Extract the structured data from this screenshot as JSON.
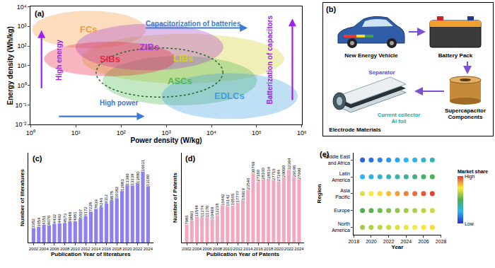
{
  "chart_data": [
    {
      "type": "region",
      "title": "(a)",
      "x_label": "Power density (W/kg)",
      "y_label": "Energy density (Wh/kg)",
      "log": true,
      "grid": false,
      "xlim": [
        1,
        1000000
      ],
      "xticks": [
        {
          "value": 1,
          "label": "10⁰"
        },
        {
          "value": 10,
          "label": "10¹"
        },
        {
          "value": 100,
          "label": "10²"
        },
        {
          "value": 1000,
          "label": "10³"
        },
        {
          "value": 10000,
          "label": "10⁴"
        },
        {
          "value": 100000,
          "label": "10⁵"
        },
        {
          "value": 1000000,
          "label": "10⁶"
        }
      ],
      "ylim": [
        0.01,
        10000
      ],
      "yticks": [
        {
          "value": 0.01,
          "label": "10⁻²"
        },
        {
          "value": 0.1,
          "label": "10⁻¹"
        },
        {
          "value": 1,
          "label": "10⁰"
        },
        {
          "value": 10,
          "label": "10¹"
        },
        {
          "value": 100,
          "label": "10²"
        },
        {
          "value": 1000,
          "label": "10³"
        },
        {
          "value": 10000,
          "label": "10⁴"
        }
      ],
      "regions": [
        {
          "name": "LIBs",
          "color": "#d6cf2a",
          "x_range": [
            14,
            400000
          ],
          "y_range": [
            1.3,
            400
          ]
        },
        {
          "name": "ASCs",
          "color": "#4fb84f",
          "x_range": [
            40,
            100000
          ],
          "y_range": [
            0.1,
            30
          ]
        },
        {
          "name": "EDLCs",
          "color": "#3f9fe0",
          "x_range": [
            800,
            800000
          ],
          "y_range": [
            0.02,
            4
          ]
        },
        {
          "name": "FCs",
          "color": "#f59a3a",
          "x_range": [
            1.1,
            350
          ],
          "y_range": [
            80,
            6000
          ]
        },
        {
          "name": "ZIBs",
          "color": "#a83cd0",
          "x_range": [
            10,
            18000
          ],
          "y_range": [
            6,
            1300
          ]
        },
        {
          "name": "SIBs",
          "color": "#e8263f",
          "x_range": [
            2,
            1600
          ],
          "y_range": [
            3,
            160
          ]
        },
        {
          "color": "#1e6b2a",
          "line_style": "dot",
          "x_range": [
            28,
            18000
          ],
          "y_range": [
            0.25,
            80
          ]
        }
      ],
      "annotations": [
        {
          "text": "Capacitorization of batteries",
          "color": "#3a7bd5"
        },
        {
          "text": "Batterization of capacitors",
          "color": "#a020f0"
        },
        {
          "text": "High energy",
          "color": "#a020f0"
        },
        {
          "text": "High power",
          "color": "#3a7bd5"
        }
      ]
    },
    {
      "type": "bar",
      "title": "(c)",
      "x_label": "Publication Year of literatures",
      "y_label": "Number of literatures",
      "x": [
        2002,
        2003,
        2004,
        2005,
        2006,
        2007,
        2008,
        2009,
        2010,
        2011,
        2012,
        2013,
        2014,
        2015,
        2016,
        2017,
        2018,
        2019,
        2020,
        2021,
        2022,
        2023,
        2024
      ],
      "values": [
        3382,
        3654,
        4151,
        4070,
        4432,
        4492,
        4573,
        4948,
        4981,
        5597,
        6172,
        7228,
        7839,
        8246,
        9112,
        9875,
        10382,
        12081,
        13399,
        13339,
        13880,
        16631,
        13180
      ],
      "color": "#8f80ee",
      "xlim": [
        2001,
        2025
      ],
      "xticks": [
        2002,
        2004,
        2006,
        2008,
        2010,
        2012,
        2014,
        2016,
        2018,
        2020,
        2022,
        2024
      ],
      "ylim": [
        0,
        21000
      ],
      "data_labels": true,
      "tick_labels": "x",
      "grid": false
    },
    {
      "type": "bar",
      "title": "(d)",
      "x_label": "Publication Year of Patents",
      "y_label": "Number of Patents",
      "x": [
        2002,
        2003,
        2004,
        2005,
        2006,
        2007,
        2008,
        2009,
        2010,
        2011,
        2012,
        2013,
        2014,
        2015,
        2016,
        2017,
        2018,
        2019,
        2020,
        2021,
        2022,
        2023,
        2024
      ],
      "values": [
        7986,
        9891,
        11544,
        11374,
        11370,
        10499,
        12218,
        16442,
        16142,
        16565,
        17777,
        18919,
        23546,
        30769,
        27180,
        28100,
        28514,
        27716,
        27244,
        29090,
        32394,
        29196,
        27999
      ],
      "color": "#f2a9c0",
      "xlim": [
        2001,
        2025
      ],
      "xticks": [
        2002,
        2004,
        2006,
        2008,
        2010,
        2012,
        2014,
        2016,
        2018,
        2020,
        2022,
        2024
      ],
      "ylim": [
        0,
        40000
      ],
      "data_labels": true,
      "tick_labels": "x",
      "grid": false
    },
    {
      "type": "scatter",
      "title": "(e)",
      "x_label": "Year",
      "y_label": "Region",
      "categories": [
        "North\nAmerica",
        "Europe",
        "Asia\nPacific",
        "Latin\nAmerica",
        "Middle East\nand Africa"
      ],
      "x": [
        2019,
        2020,
        2021,
        2022,
        2023,
        2024,
        2025,
        2026,
        2027
      ],
      "cells": [
        [
          0.62,
          0.64,
          0.66,
          0.68,
          0.7,
          0.72,
          0.74,
          0.76,
          0.78
        ],
        [
          0.5,
          0.52,
          0.55,
          0.58,
          0.6,
          0.62,
          0.64,
          0.66,
          0.68
        ],
        [
          0.7,
          0.74,
          0.78,
          0.82,
          0.86,
          0.9,
          0.93,
          0.96,
          0.99
        ],
        [
          0.25,
          0.28,
          0.31,
          0.34,
          0.37,
          0.4,
          0.43,
          0.46,
          0.5
        ],
        [
          0.1,
          0.13,
          0.16,
          0.19,
          0.22,
          0.25,
          0.28,
          0.31,
          0.34
        ]
      ],
      "xlim": [
        2018,
        2028
      ],
      "xticks": [
        2018,
        2020,
        2022,
        2024,
        2026,
        2028
      ],
      "color_range": [
        0,
        1
      ],
      "color_ticks": [
        {
          "value": 0,
          "label": "Low"
        },
        {
          "value": 1,
          "label": "High"
        }
      ],
      "colorbar_title": "Market share",
      "marker": "circle",
      "grid": false
    }
  ],
  "diagram": {
    "title": "(b)",
    "vehicle": "New Energy Vehicle",
    "battery": "Battery Pack",
    "supercapacitor": "Supercapacitor\nComponents",
    "electrode": "Electrode Materials",
    "separator": "Separator",
    "collector": "Current collector\nAl foil"
  }
}
